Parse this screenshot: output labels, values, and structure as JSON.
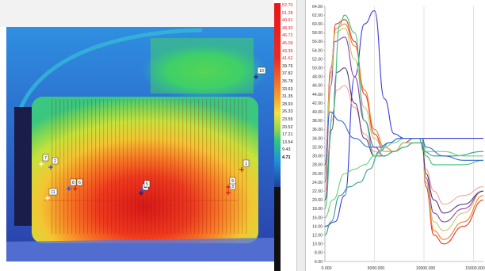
{
  "thermal_view": {
    "markers": [
      {
        "id": "1",
        "label": "1"
      },
      {
        "id": "2",
        "label": "2"
      },
      {
        "id": "3",
        "label": "3"
      },
      {
        "id": "4",
        "label": "4"
      },
      {
        "id": "5",
        "label": "5"
      },
      {
        "id": "6",
        "label": "6"
      },
      {
        "id": "7",
        "label": "7"
      },
      {
        "id": "8",
        "label": "8"
      },
      {
        "id": "9",
        "label": "9"
      },
      {
        "id": "10",
        "label": "10"
      },
      {
        "id": "11",
        "label": "11"
      }
    ]
  },
  "temperature_scale": {
    "ticks": [
      "52.70",
      "51.28",
      "49.91",
      "48.30",
      "46.72",
      "45.09",
      "43.39",
      "41.62",
      "39.76",
      "37.82",
      "35.78",
      "33.63",
      "31.35",
      "28.93",
      "26.33",
      "23.55",
      "20.52",
      "17.21",
      "13.54",
      "9.43",
      "4.71"
    ]
  },
  "chart_data": {
    "type": "line",
    "y_ticks": [
      "64.00",
      "62.00",
      "60.00",
      "58.00",
      "56.00",
      "54.00",
      "52.00",
      "50.00",
      "48.00",
      "46.00",
      "44.00",
      "42.00",
      "40.00",
      "38.00",
      "36.00",
      "34.00",
      "32.00",
      "30.00",
      "28.00",
      "26.00",
      "24.00",
      "22.00",
      "20.00",
      "18.00",
      "16.00",
      "14.00",
      "12.00",
      "10.00",
      "8.00",
      "6.00"
    ],
    "x_ticks": [
      "0.000",
      "5000.000",
      "10000.000",
      "15000.000"
    ],
    "ylim": [
      6,
      64
    ],
    "xlim": [
      0,
      16000
    ],
    "grid_x": [
      5000,
      10000,
      15000
    ],
    "series": [
      {
        "color": "#3a3ad8",
        "x": [
          0,
          1000,
          2000,
          3000,
          4000,
          5000,
          6000,
          7000,
          8000,
          9000,
          10000,
          16000
        ],
        "y": [
          14,
          15,
          21,
          48,
          60,
          63,
          43,
          35,
          34,
          34,
          34,
          34
        ]
      },
      {
        "color": "#e53a1e",
        "x": [
          0,
          600,
          1100,
          2000,
          3000,
          4000,
          5000,
          6000,
          7000,
          8000,
          9000,
          9800,
          10200,
          11000,
          12000,
          14000,
          16000
        ],
        "y": [
          28,
          50,
          60,
          61,
          56,
          44,
          35,
          31,
          31,
          33,
          33,
          33,
          23,
          12,
          10,
          14,
          20
        ]
      },
      {
        "color": "#f07f2a",
        "x": [
          0,
          600,
          1100,
          2000,
          3000,
          4000,
          5000,
          6000,
          7000,
          8000,
          9000,
          9800,
          10200,
          11000,
          12000,
          14000,
          16000
        ],
        "y": [
          27,
          49,
          59,
          60,
          55,
          45,
          36,
          32,
          31,
          33,
          33,
          33,
          24,
          13,
          11,
          15,
          21
        ]
      },
      {
        "color": "#8a3fb0",
        "x": [
          0,
          600,
          1000,
          2000,
          3000,
          4000,
          5000,
          6000,
          7000,
          8000,
          9000,
          9800,
          10200,
          11000,
          12000,
          14000,
          16000
        ],
        "y": [
          24,
          46,
          56,
          57,
          48,
          38,
          32,
          30,
          31,
          33,
          34,
          34,
          25,
          17,
          15,
          18,
          22
        ]
      },
      {
        "color": "#c9c36a",
        "x": [
          0,
          600,
          1000,
          2000,
          3000,
          4000,
          5000,
          6000,
          7000,
          8000,
          9000,
          9800,
          10200,
          11000,
          12000,
          14000,
          16000
        ],
        "y": [
          26,
          48,
          58,
          59,
          52,
          41,
          34,
          31,
          31,
          33,
          33,
          33,
          24,
          15,
          13,
          17,
          22
        ]
      },
      {
        "color": "#f2a59c",
        "x": [
          0,
          700,
          1200,
          2000,
          3000,
          4000,
          5000,
          6000,
          7000,
          8000,
          9000,
          9800,
          10200,
          11000,
          12000,
          14000,
          16000
        ],
        "y": [
          22,
          38,
          45,
          46,
          41,
          35,
          31,
          30,
          31,
          32,
          33,
          33,
          27,
          22,
          19,
          21,
          23
        ]
      },
      {
        "color": "#5c3a7a",
        "x": [
          0,
          700,
          1200,
          2000,
          3000,
          4000,
          5000,
          6000,
          7000,
          8000,
          9000,
          9800,
          10200,
          11000,
          12000,
          14000,
          16000
        ],
        "y": [
          20,
          36,
          49,
          50,
          42,
          34,
          30,
          30,
          31,
          32,
          33,
          33,
          26,
          20,
          17,
          19,
          22
        ]
      },
      {
        "color": "#3fbf7a",
        "x": [
          0,
          800,
          1500,
          2000,
          3000,
          4000,
          5000,
          6000,
          7000,
          8000,
          9000,
          9800,
          10200,
          11000,
          12000,
          14000,
          16000
        ],
        "y": [
          18,
          40,
          60,
          62,
          58,
          38,
          30,
          30,
          31,
          32,
          33,
          33,
          30,
          28,
          28,
          28,
          29
        ]
      },
      {
        "color": "#2f9f8f",
        "x": [
          0,
          600,
          1500,
          2500,
          3500,
          4500,
          5500,
          6500,
          7500,
          8500,
          9500,
          10000,
          11000,
          13000,
          16000
        ],
        "y": [
          12,
          15,
          21,
          23,
          24,
          27,
          31,
          33,
          34,
          34,
          34,
          31,
          30,
          30,
          31
        ]
      },
      {
        "color": "#6ad07a",
        "x": [
          0,
          800,
          2000,
          3000,
          4000,
          5000,
          6000,
          7000,
          8000,
          9000,
          9800,
          10200,
          12000,
          14000,
          16000
        ],
        "y": [
          16,
          20,
          26,
          27,
          28,
          30,
          32,
          33,
          34,
          34,
          34,
          31,
          31,
          30,
          30
        ]
      },
      {
        "color": "#3a68d8",
        "x": [
          0,
          500,
          1500,
          3000,
          4500,
          5500,
          6500,
          7500,
          8500,
          9800,
          10200,
          12000,
          14000,
          16000
        ],
        "y": [
          28,
          40,
          38,
          34,
          32,
          32,
          33,
          34,
          34,
          34,
          32,
          30,
          29,
          29
        ]
      }
    ]
  }
}
